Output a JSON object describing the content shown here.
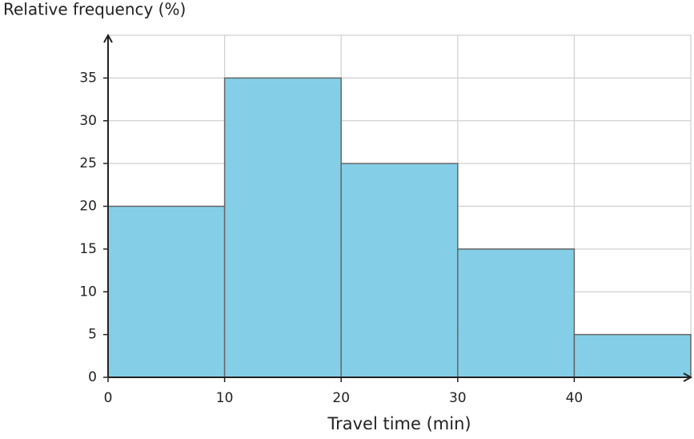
{
  "chart_data": {
    "type": "histogram",
    "ylabel": "Relative frequency (%)",
    "xlabel": "Travel time (min)",
    "bins": [
      0,
      10,
      20,
      30,
      40,
      50
    ],
    "values": [
      20,
      35,
      25,
      15,
      5
    ],
    "color": "#80cde6",
    "xlim": [
      0,
      50
    ],
    "xticks": [
      0,
      10,
      20,
      30,
      40
    ],
    "ylim": [
      0,
      40
    ],
    "yticks": [
      0,
      5,
      10,
      15,
      20,
      25,
      30,
      35
    ],
    "grid": true
  }
}
